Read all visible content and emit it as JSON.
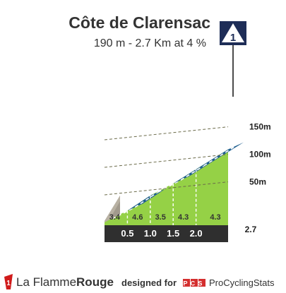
{
  "climb": {
    "name": "Côte de Clarensac",
    "summary": "190 m - 2.7 Km at 4 %",
    "category": "1"
  },
  "chart_data": {
    "type": "area",
    "title": "Côte de Clarensac",
    "subtitle": "190 m - 2.7 Km at 4 %",
    "x_unit": "km",
    "y_unit": "m",
    "xlim": [
      0,
      2.7
    ],
    "ylim": [
      0,
      190
    ],
    "y_ticks": [
      {
        "value": 50,
        "label": "50m"
      },
      {
        "value": 100,
        "label": "100m"
      },
      {
        "value": 150,
        "label": "150m"
      }
    ],
    "km_ticks": [
      {
        "value": 0.5,
        "label": "0.5"
      },
      {
        "value": 1.0,
        "label": "1.0"
      },
      {
        "value": 1.5,
        "label": "1.5"
      },
      {
        "value": 2.0,
        "label": "2.0"
      }
    ],
    "end_label": "2.7",
    "segments": [
      {
        "from": 0.0,
        "to": 0.5,
        "gradient": 3.4,
        "label": "3.4"
      },
      {
        "from": 0.5,
        "to": 1.0,
        "gradient": 4.6,
        "label": "4.6"
      },
      {
        "from": 1.0,
        "to": 1.5,
        "gradient": 3.5,
        "label": "3.5"
      },
      {
        "from": 1.5,
        "to": 2.0,
        "gradient": 4.3,
        "label": "4.3"
      },
      {
        "from": 2.0,
        "to": 2.7,
        "gradient": 4.3,
        "label": "4.3"
      }
    ],
    "profile": [
      {
        "km": 0.0,
        "alt": 0
      },
      {
        "km": 0.5,
        "alt": 17
      },
      {
        "km": 1.0,
        "alt": 40
      },
      {
        "km": 1.5,
        "alt": 57.5
      },
      {
        "km": 2.0,
        "alt": 79
      },
      {
        "km": 2.7,
        "alt": 109
      }
    ],
    "colors": {
      "slope_top": "#8dcb3f",
      "slope_face": "#95d146",
      "steep_top": "#1f5f8f",
      "base_band": "#2f2f2f",
      "start_block": "#a19a8d"
    }
  },
  "footer": {
    "brand_a": "La Flamme",
    "brand_b": "Rouge",
    "designed_by": "designed for",
    "pcs_badge": "PCS",
    "pcs_name": "ProCyclingStats"
  }
}
